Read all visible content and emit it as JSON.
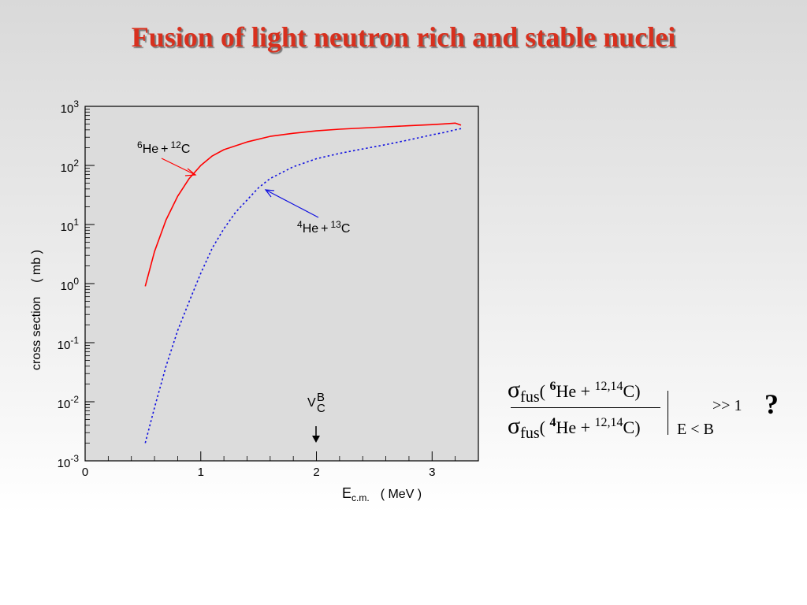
{
  "slide": {
    "title": "Fusion of light neutron rich and stable nuclei"
  },
  "chart_data": {
    "type": "line",
    "y_scale": "log",
    "xlim": [
      0,
      3.4
    ],
    "ylim": [
      0.001,
      1000
    ],
    "grid": false,
    "xlabel": {
      "main": "E",
      "sub": "c.m.",
      "unit": "( MeV )"
    },
    "ylabel": "cross section    ( mb )",
    "x_ticks": [
      {
        "value": 0,
        "label": "0"
      },
      {
        "value": 1,
        "label": "1"
      },
      {
        "value": 2,
        "label": "2"
      },
      {
        "value": 3,
        "label": "3"
      }
    ],
    "y_ticks": [
      {
        "value": 0.001,
        "base": "10",
        "exp": "-3"
      },
      {
        "value": 0.01,
        "base": "10",
        "exp": "-2"
      },
      {
        "value": 0.1,
        "base": "10",
        "exp": "-1"
      },
      {
        "value": 1,
        "base": "10",
        "exp": "0"
      },
      {
        "value": 10,
        "base": "10",
        "exp": "1"
      },
      {
        "value": 100,
        "base": "10",
        "exp": "2"
      },
      {
        "value": 1000,
        "base": "10",
        "exp": "3"
      }
    ],
    "series": [
      {
        "label_parts": {
          "a_mass": "6",
          "a_el": "He",
          "plus": "+",
          "b_mass": "12",
          "b_el": "C"
        },
        "color": "#ff0000",
        "style": "solid",
        "x": [
          0.52,
          0.6,
          0.7,
          0.8,
          0.9,
          1.0,
          1.1,
          1.2,
          1.4,
          1.6,
          1.8,
          2.0,
          2.2,
          2.4,
          2.6,
          2.8,
          3.0,
          3.1,
          3.2,
          3.25
        ],
        "y": [
          0.9,
          3.5,
          12,
          30,
          60,
          100,
          145,
          185,
          250,
          310,
          350,
          385,
          410,
          430,
          450,
          470,
          490,
          505,
          520,
          480
        ]
      },
      {
        "label_parts": {
          "a_mass": "4",
          "a_el": "He",
          "plus": "+",
          "b_mass": "13",
          "b_el": "C"
        },
        "color": "#1010e0",
        "style": "dotted",
        "x": [
          0.52,
          0.6,
          0.7,
          0.8,
          0.9,
          1.0,
          1.1,
          1.2,
          1.3,
          1.4,
          1.5,
          1.6,
          1.8,
          2.0,
          2.2,
          2.4,
          2.6,
          2.8,
          3.0,
          3.1,
          3.2,
          3.25
        ],
        "y": [
          0.002,
          0.008,
          0.04,
          0.16,
          0.5,
          1.5,
          4,
          8.5,
          16,
          26,
          42,
          60,
          95,
          130,
          160,
          190,
          225,
          270,
          330,
          360,
          400,
          420
        ]
      }
    ],
    "annotations": {
      "barrier": {
        "x": 2.0,
        "main": "V",
        "sub": "C",
        "sup": "B"
      }
    }
  },
  "ratio_formula": {
    "symbol": "σ",
    "sub": "fus",
    "num_open": "( ",
    "num_mass": "6",
    "num_el": "He + ",
    "targets": "12,14",
    "target_el": "C)",
    "den_open": "( ",
    "den_mass": "4",
    "den_el": "He + ",
    "den_targets": "12,14",
    "den_target_el": "C)",
    "condition": "E < B",
    "relation": ">> 1",
    "question": "?"
  }
}
